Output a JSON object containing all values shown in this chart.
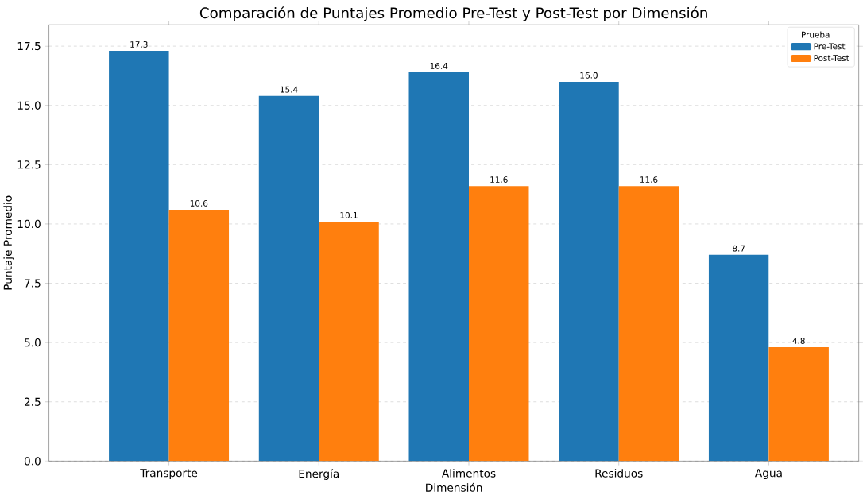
{
  "chart_data": {
    "type": "bar",
    "title": "Comparación de Puntajes Promedio Pre-Test y Post-Test por Dimensión",
    "xlabel": "Dimensión",
    "ylabel": "Puntaje Promedio",
    "legend_title": "Prueba",
    "categories": [
      "Transporte",
      "Energía",
      "Alimentos",
      "Residuos",
      "Agua"
    ],
    "series": [
      {
        "name": "Pre-Test",
        "color": "#1f77b4",
        "values": [
          17.3,
          15.4,
          16.4,
          16.0,
          8.7
        ],
        "value_labels": [
          "17.3",
          "15.4",
          "16.4",
          "16.0",
          "8.7"
        ]
      },
      {
        "name": "Post-Test",
        "color": "#ff7f0e",
        "values": [
          10.6,
          10.1,
          11.6,
          11.6,
          4.8
        ],
        "value_labels": [
          "10.6",
          "10.1",
          "11.6",
          "11.6",
          "4.8"
        ]
      }
    ],
    "ylim": [
      0,
      18.4
    ],
    "yticks": [
      {
        "value": 0,
        "label": "0.0"
      },
      {
        "value": 2.5,
        "label": "2.5"
      },
      {
        "value": 5,
        "label": "5.0"
      },
      {
        "value": 7.5,
        "label": "7.5"
      },
      {
        "value": 10,
        "label": "10.0"
      },
      {
        "value": 12.5,
        "label": "12.5"
      },
      {
        "value": 15,
        "label": "15.0"
      },
      {
        "value": 17.5,
        "label": "17.5"
      }
    ],
    "grid": "y",
    "legend": "top right"
  }
}
